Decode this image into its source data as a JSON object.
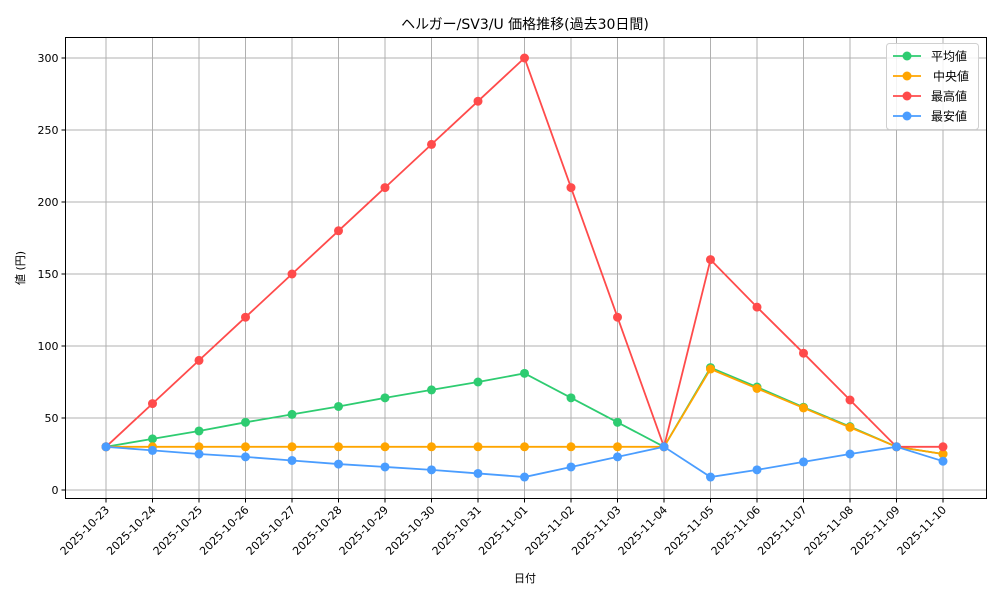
{
  "chart_data": {
    "type": "line",
    "title": "ヘルガー/SV3/U 価格推移(過去30日間)",
    "xlabel": "日付",
    "ylabel": "値 (円)",
    "ylim": [
      -9,
      315
    ],
    "yticks": [
      0,
      50,
      100,
      150,
      200,
      250,
      300
    ],
    "grid": true,
    "legend_position": "upper right",
    "categories": [
      "2025-10-23",
      "2025-10-24",
      "2025-10-25",
      "2025-10-26",
      "2025-10-27",
      "2025-10-28",
      "2025-10-29",
      "2025-10-30",
      "2025-10-31",
      "2025-11-01",
      "2025-11-02",
      "2025-11-03",
      "2025-11-04",
      "2025-11-05",
      "2025-11-06",
      "2025-11-07",
      "2025-11-08",
      "2025-11-09",
      "2025-11-10"
    ],
    "series": [
      {
        "name": "平均値",
        "color": "#2ecc71",
        "values": [
          30,
          35.5,
          41,
          47,
          52.5,
          58,
          64,
          69.5,
          75,
          81,
          64,
          47,
          30,
          85,
          71.5,
          57.5,
          44,
          30,
          25
        ]
      },
      {
        "name": "中央値",
        "color": "#ffa500",
        "values": [
          30,
          30,
          30,
          30,
          30,
          30,
          30,
          30,
          30,
          30,
          30,
          30,
          30,
          84,
          70.5,
          57,
          43.5,
          30,
          25
        ]
      },
      {
        "name": "最高値",
        "color": "#ff4b4b",
        "values": [
          30,
          60,
          90,
          120,
          150,
          180,
          210,
          240,
          270,
          300,
          210,
          120,
          30,
          160,
          127,
          95,
          62.5,
          30,
          30
        ]
      },
      {
        "name": "最安値",
        "color": "#4a9dff",
        "values": [
          30,
          27.5,
          25,
          23,
          20.5,
          18,
          16,
          14,
          11.5,
          9,
          16,
          23,
          30,
          9,
          14,
          19.5,
          25,
          30,
          20
        ]
      }
    ]
  }
}
